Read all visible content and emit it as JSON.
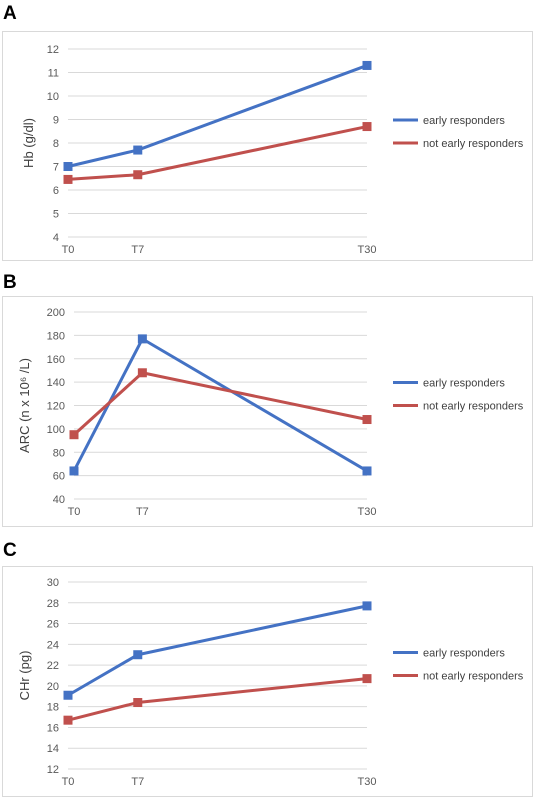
{
  "chart_data": [
    {
      "panel": "A",
      "type": "line",
      "ylabel": "Hb (g/dl)",
      "categories": [
        "T0",
        "T7",
        "T30"
      ],
      "x": [
        0,
        7,
        30
      ],
      "ylim": [
        4,
        12
      ],
      "yticks": [
        4,
        5,
        6,
        7,
        8,
        9,
        10,
        11,
        12
      ],
      "grid": true,
      "legend": "right",
      "series": [
        {
          "name": "early responders",
          "color": "#4472c4",
          "values": [
            7.0,
            7.7,
            11.3
          ]
        },
        {
          "name": "not early responders",
          "color": "#c0504d",
          "values": [
            6.45,
            6.65,
            8.7
          ]
        }
      ]
    },
    {
      "panel": "B",
      "type": "line",
      "ylabel": "ARC (n x 10⁶ /L)",
      "categories": [
        "T0",
        "T7",
        "T30"
      ],
      "x": [
        0,
        7,
        30
      ],
      "ylim": [
        40,
        200
      ],
      "yticks": [
        40,
        60,
        80,
        100,
        120,
        140,
        160,
        180,
        200
      ],
      "grid": true,
      "legend": "right",
      "series": [
        {
          "name": "early responders",
          "color": "#4472c4",
          "values": [
            64,
            177,
            64
          ]
        },
        {
          "name": "not early responders",
          "color": "#c0504d",
          "values": [
            95,
            148,
            108
          ]
        }
      ]
    },
    {
      "panel": "C",
      "type": "line",
      "ylabel": "CHr (pg)",
      "categories": [
        "T0",
        "T7",
        "T30"
      ],
      "x": [
        0,
        7,
        30
      ],
      "ylim": [
        12,
        30
      ],
      "yticks": [
        12,
        14,
        16,
        18,
        20,
        22,
        24,
        26,
        28,
        30
      ],
      "grid": true,
      "legend": "right",
      "series": [
        {
          "name": "early responders",
          "color": "#4472c4",
          "values": [
            19.1,
            23.0,
            27.7
          ]
        },
        {
          "name": "not early responders",
          "color": "#c0504d",
          "values": [
            16.7,
            18.4,
            20.7
          ]
        }
      ]
    }
  ]
}
